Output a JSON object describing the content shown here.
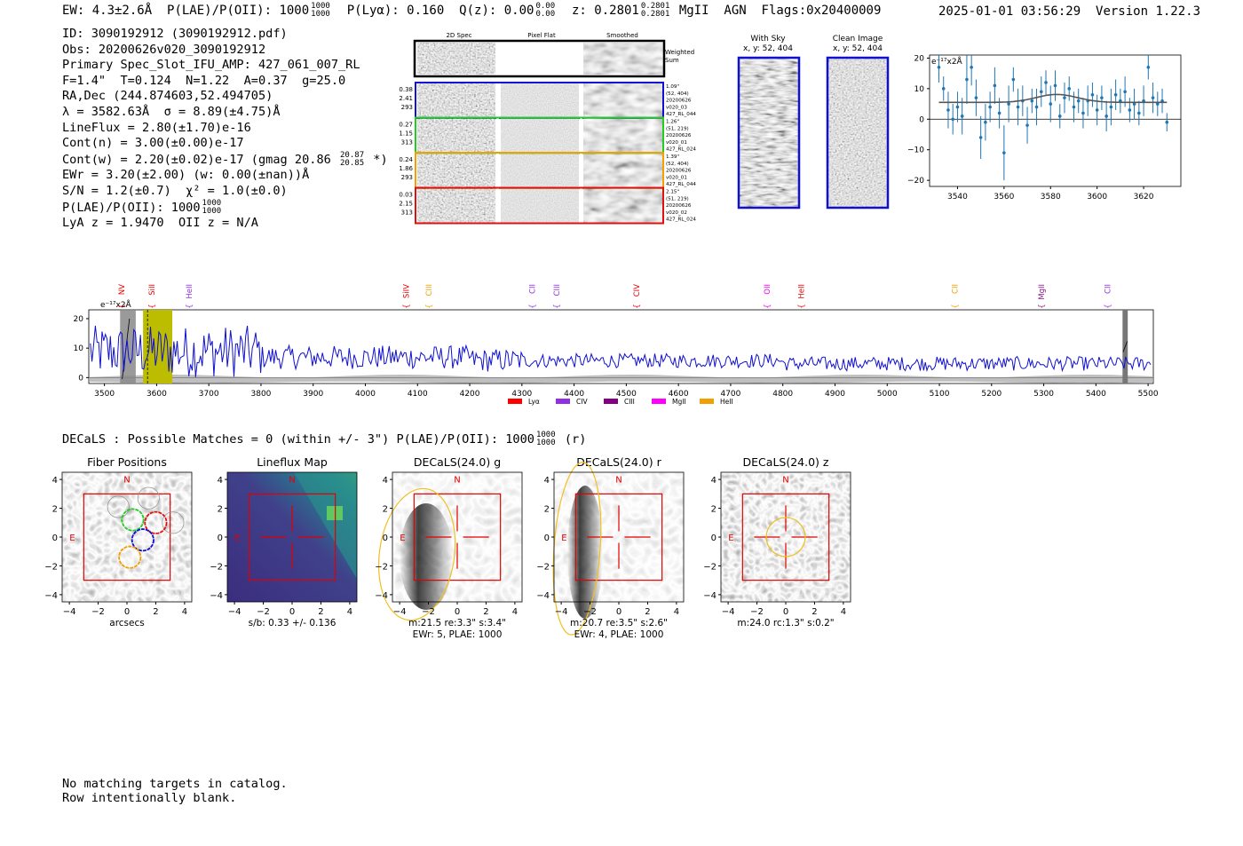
{
  "header": {
    "ew": "EW: 4.3±2.6Å",
    "plae_label": "P(LAE)/P(OII): 1000",
    "plae_hi": "1000",
    "plae_lo": "1000",
    "plya": "P(Lyα): 0.160",
    "qz_label": "Q(z): 0.00",
    "qz_hi": "0.00",
    "qz_lo": "0.00",
    "z_label": "z: 0.2801",
    "z_hi": "0.2801",
    "z_lo": "0.2801",
    "z_line": "MgII",
    "agn": "AGN",
    "flags": "Flags:0x20400009",
    "timestamp": "2025-01-01 03:56:29",
    "version": "Version 1.22.3"
  },
  "info": {
    "id": "ID: 3090192912 (3090192912.pdf)",
    "obs": "Obs: 20200626v020_3090192912",
    "primary": "Primary Spec_Slot_IFU_AMP: 427_061_007_RL",
    "fit": "F=1.4\"  T=0.124  N=1.22  A=0.37  g=25.0",
    "radec": "RA,Dec (244.874603,52.494705)",
    "lambda": "λ = 3582.63Å  σ = 8.89(±4.75)Å",
    "lineflux": "LineFlux = 2.80(±1.70)e-16",
    "contn": "Cont(n) = 3.00(±0.00)e-17",
    "contw": "Cont(w) = 2.20(±0.02)e-17 (gmag 20.86",
    "contw_hi": "20.87",
    "contw_lo": "20.85",
    "contw_end": "*)",
    "ewr": "EWr = 3.20(±2.00) (w: 0.00(±nan))Å",
    "sn": "S/N = 1.2(±0.7)  χ² = 1.0(±0.0)",
    "plae": "P(LAE)/P(OII): 1000",
    "plae_hi": "1000",
    "plae_lo": "1000",
    "lya": "LyA z = 1.9470  OII z = N/A"
  },
  "cutouts": {
    "col_2d": "2D Spec",
    "col_flat": "Pixel Flat",
    "col_smooth": "Smoothed",
    "weighted": "Weighted",
    "sum": "Sum",
    "rows": [
      {
        "v1": "0.38",
        "v2": "2.41",
        "v3": "293",
        "r1": "1.09\"",
        "r2": "(52, 404)",
        "r3": "20200626",
        "r4": "v020_03",
        "r5": "427_RL_044",
        "color": "#1010d0"
      },
      {
        "v1": "0.27",
        "v2": "1.15",
        "v3": "313",
        "r1": "1.26\"",
        "r2": "(51, 219)",
        "r3": "20200626",
        "r4": "v020_01",
        "r5": "427_RL_024",
        "color": "#22cc22"
      },
      {
        "v1": "0.24",
        "v2": "1.86",
        "v3": "293",
        "r1": "1.39\"",
        "r2": "(52, 404)",
        "r3": "20200626",
        "r4": "v020_01",
        "r5": "427_RL_044",
        "color": "#f0a000"
      },
      {
        "v1": "0.03",
        "v2": "2.15",
        "v3": "313",
        "r1": "2.15\"",
        "r2": "(51, 219)",
        "r3": "20200626",
        "r4": "v020_02",
        "r5": "427_RL_024",
        "color": "#e01010"
      }
    ]
  },
  "sky": {
    "with_sky": "With Sky",
    "with_sky_xy": "x, y: 52, 404",
    "clean": "Clean Image",
    "clean_xy": "x, y: 52, 404"
  },
  "colors": {
    "blue": "#1010d0",
    "fit_line": "#555555",
    "point": "#1f77b4",
    "yellow": "#bcbc00",
    "red": "#e00000"
  },
  "chart_data": [
    {
      "type": "scatter",
      "title": "",
      "ylabel": "e⁻¹⁷x2Å",
      "xlim": [
        3528,
        3636
      ],
      "ylim": [
        -22,
        21
      ],
      "xticks": [
        3540,
        3560,
        3580,
        3600,
        3620
      ],
      "yticks": [
        -20,
        -10,
        0,
        10,
        20
      ],
      "points": [
        {
          "x": 3532,
          "y": 17,
          "e": 5
        },
        {
          "x": 3534,
          "y": 10,
          "e": 4
        },
        {
          "x": 3536,
          "y": 3,
          "e": 6
        },
        {
          "x": 3538,
          "y": 0,
          "e": 5
        },
        {
          "x": 3540,
          "y": 4,
          "e": 5
        },
        {
          "x": 3542,
          "y": 1,
          "e": 6
        },
        {
          "x": 3544,
          "y": 13,
          "e": 8
        },
        {
          "x": 3546,
          "y": 17,
          "e": 6
        },
        {
          "x": 3548,
          "y": 7,
          "e": 6
        },
        {
          "x": 3550,
          "y": -6,
          "e": 7
        },
        {
          "x": 3552,
          "y": -1,
          "e": 6
        },
        {
          "x": 3554,
          "y": 4,
          "e": 5
        },
        {
          "x": 3556,
          "y": 11,
          "e": 6
        },
        {
          "x": 3558,
          "y": 2,
          "e": 5
        },
        {
          "x": 3560,
          "y": -11,
          "e": 9
        },
        {
          "x": 3562,
          "y": 5,
          "e": 6
        },
        {
          "x": 3564,
          "y": 13,
          "e": 4
        },
        {
          "x": 3566,
          "y": 4,
          "e": 6
        },
        {
          "x": 3568,
          "y": 6,
          "e": 5
        },
        {
          "x": 3570,
          "y": -2,
          "e": 6
        },
        {
          "x": 3572,
          "y": 6,
          "e": 4
        },
        {
          "x": 3574,
          "y": 4,
          "e": 6
        },
        {
          "x": 3576,
          "y": 9,
          "e": 5
        },
        {
          "x": 3578,
          "y": 12,
          "e": 4
        },
        {
          "x": 3580,
          "y": 5,
          "e": 6
        },
        {
          "x": 3582,
          "y": 11,
          "e": 5
        },
        {
          "x": 3584,
          "y": 1,
          "e": 4
        },
        {
          "x": 3586,
          "y": 7,
          "e": 5
        },
        {
          "x": 3588,
          "y": 10,
          "e": 4
        },
        {
          "x": 3590,
          "y": 4,
          "e": 5
        },
        {
          "x": 3592,
          "y": 6,
          "e": 4
        },
        {
          "x": 3594,
          "y": 2,
          "e": 5
        },
        {
          "x": 3596,
          "y": 6,
          "e": 5
        },
        {
          "x": 3598,
          "y": 8,
          "e": 4
        },
        {
          "x": 3600,
          "y": 3,
          "e": 5
        },
        {
          "x": 3602,
          "y": 7,
          "e": 4
        },
        {
          "x": 3604,
          "y": 1,
          "e": 5
        },
        {
          "x": 3606,
          "y": 4,
          "e": 6
        },
        {
          "x": 3608,
          "y": 8,
          "e": 5
        },
        {
          "x": 3610,
          "y": 6,
          "e": 4
        },
        {
          "x": 3612,
          "y": 9,
          "e": 5
        },
        {
          "x": 3614,
          "y": 3,
          "e": 4
        },
        {
          "x": 3616,
          "y": 5,
          "e": 5
        },
        {
          "x": 3618,
          "y": 2,
          "e": 4
        },
        {
          "x": 3620,
          "y": 6,
          "e": 5
        },
        {
          "x": 3622,
          "y": 17,
          "e": 4
        },
        {
          "x": 3624,
          "y": 7,
          "e": 5
        },
        {
          "x": 3626,
          "y": 5,
          "e": 4
        },
        {
          "x": 3628,
          "y": 6,
          "e": 4
        },
        {
          "x": 3630,
          "y": -1,
          "e": 3
        }
      ],
      "fit": {
        "continuum": 5.5,
        "amplitude": 2.6,
        "center": 3582.63,
        "sigma": 8.89
      }
    },
    {
      "type": "line",
      "ylabel": "e⁻¹⁷x2Å",
      "xlim": [
        3470,
        5510
      ],
      "ylim": [
        -2,
        23
      ],
      "xticks": [
        3500,
        3600,
        3700,
        3800,
        3900,
        4000,
        4100,
        4200,
        4300,
        4400,
        4500,
        4600,
        4700,
        4800,
        4900,
        5000,
        5100,
        5200,
        5300,
        5400,
        5500
      ],
      "yticks": [
        0,
        10,
        20
      ],
      "line_center": 3582.63,
      "highlight_range": [
        3574,
        3630
      ],
      "lines": [
        {
          "label": "NV",
          "x": 3533,
          "color": "#e00000"
        },
        {
          "label": "SiII",
          "x": 3591,
          "color": "#e00000"
        },
        {
          "label": "HeII",
          "x": 3662,
          "color": "#9030e0"
        },
        {
          "label": "SiIV",
          "x": 4078,
          "color": "#e00000"
        },
        {
          "label": "CIII",
          "x": 4122,
          "color": "#f0a000"
        },
        {
          "label": "CII",
          "x": 4320,
          "color": "#9030e0"
        },
        {
          "label": "CIII",
          "x": 4367,
          "color": "#9030e0"
        },
        {
          "label": "CIV",
          "x": 4520,
          "color": "#e00000"
        },
        {
          "label": "OII",
          "x": 4770,
          "color": "#ee00ee"
        },
        {
          "label": "HeII",
          "x": 4835,
          "color": "#e00000"
        },
        {
          "label": "CII",
          "x": 5130,
          "color": "#f0a000"
        },
        {
          "label": "MgII",
          "x": 5296,
          "color": "#8a1a8a"
        },
        {
          "label": "CII",
          "x": 5422,
          "color": "#9030e0"
        }
      ],
      "legend": [
        {
          "label": "Lyα",
          "color": "#ff0000"
        },
        {
          "label": "CIV",
          "color": "#9030e0"
        },
        {
          "label": "CIII",
          "color": "#800080"
        },
        {
          "label": "MgII",
          "color": "#ff00ff"
        },
        {
          "label": "HeII",
          "color": "#f0a000"
        }
      ]
    }
  ],
  "decals": {
    "title": "DECaLS : Possible Matches = 0 (within +/- 3\")  P(LAE)/P(OII): 1000",
    "title_hi": "1000",
    "title_lo": "1000",
    "title_end": "(r)",
    "ticks": [
      "−4",
      "−2",
      "0",
      "2",
      "4"
    ],
    "panels": [
      {
        "title": "Fiber Positions",
        "caption1": "arcsecs",
        "caption2": "",
        "n": "N",
        "e": "E"
      },
      {
        "title": "Lineflux Map",
        "caption1": "s/b: 0.33 +/- 0.136",
        "caption2": "",
        "n": "N",
        "e": "E"
      },
      {
        "title": "DECaLS(24.0) g",
        "caption1": "m:21.5  re:3.3\"  s:3.4\"",
        "caption2": "EWr: 5, PLAE: 1000",
        "n": "N",
        "e": "E"
      },
      {
        "title": "DECaLS(24.0) r",
        "caption1": "m:20.7  re:3.5\"  s:2.6\"",
        "caption2": "EWr: 4, PLAE: 1000",
        "n": "N",
        "e": "E"
      },
      {
        "title": "DECaLS(24.0) z",
        "caption1": "m:24.0 rc:1.3\"  s:0.2\"",
        "caption2": "",
        "n": "N",
        "e": "E"
      }
    ]
  },
  "footer": {
    "line1": "No matching targets in catalog.",
    "line2": "Row intentionally blank."
  }
}
